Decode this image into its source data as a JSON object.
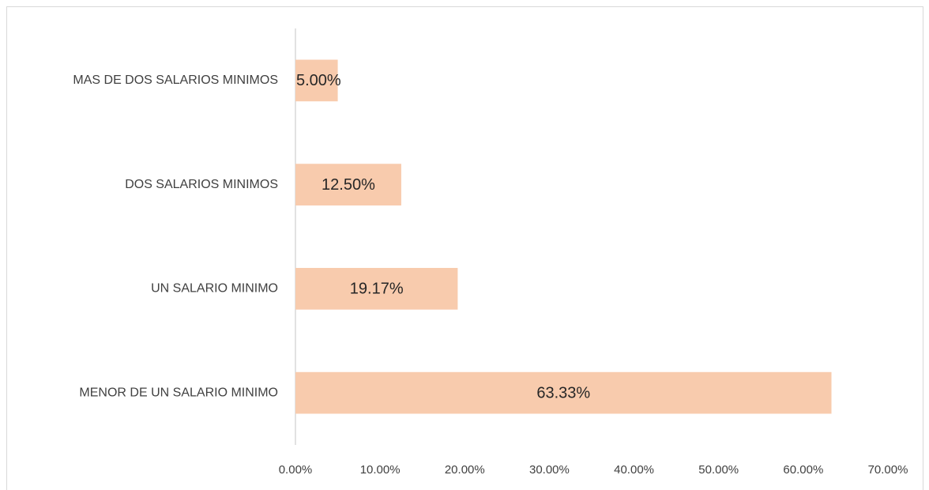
{
  "chart_data": {
    "type": "bar",
    "orientation": "horizontal",
    "categories": [
      "MAS DE DOS SALARIOS MINIMOS",
      "DOS SALARIOS MINIMOS",
      "UN SALARIO MINIMO",
      "MENOR DE UN SALARIO MINIMO"
    ],
    "values": [
      5.0,
      12.5,
      19.17,
      63.33
    ],
    "value_labels": [
      "5.00%",
      "12.50%",
      "19.17%",
      "63.33%"
    ],
    "color": "#f8cbad",
    "xlim": [
      0,
      70
    ],
    "xticks": [
      {
        "value": 0,
        "label": "0.00%"
      },
      {
        "value": 10,
        "label": "10.00%"
      },
      {
        "value": 20,
        "label": "20.00%"
      },
      {
        "value": 30,
        "label": "30.00%"
      },
      {
        "value": 40,
        "label": "40.00%"
      },
      {
        "value": 50,
        "label": "50.00%"
      },
      {
        "value": 60,
        "label": "60.00%"
      },
      {
        "value": 70,
        "label": "70.00%"
      }
    ],
    "grid": false
  }
}
